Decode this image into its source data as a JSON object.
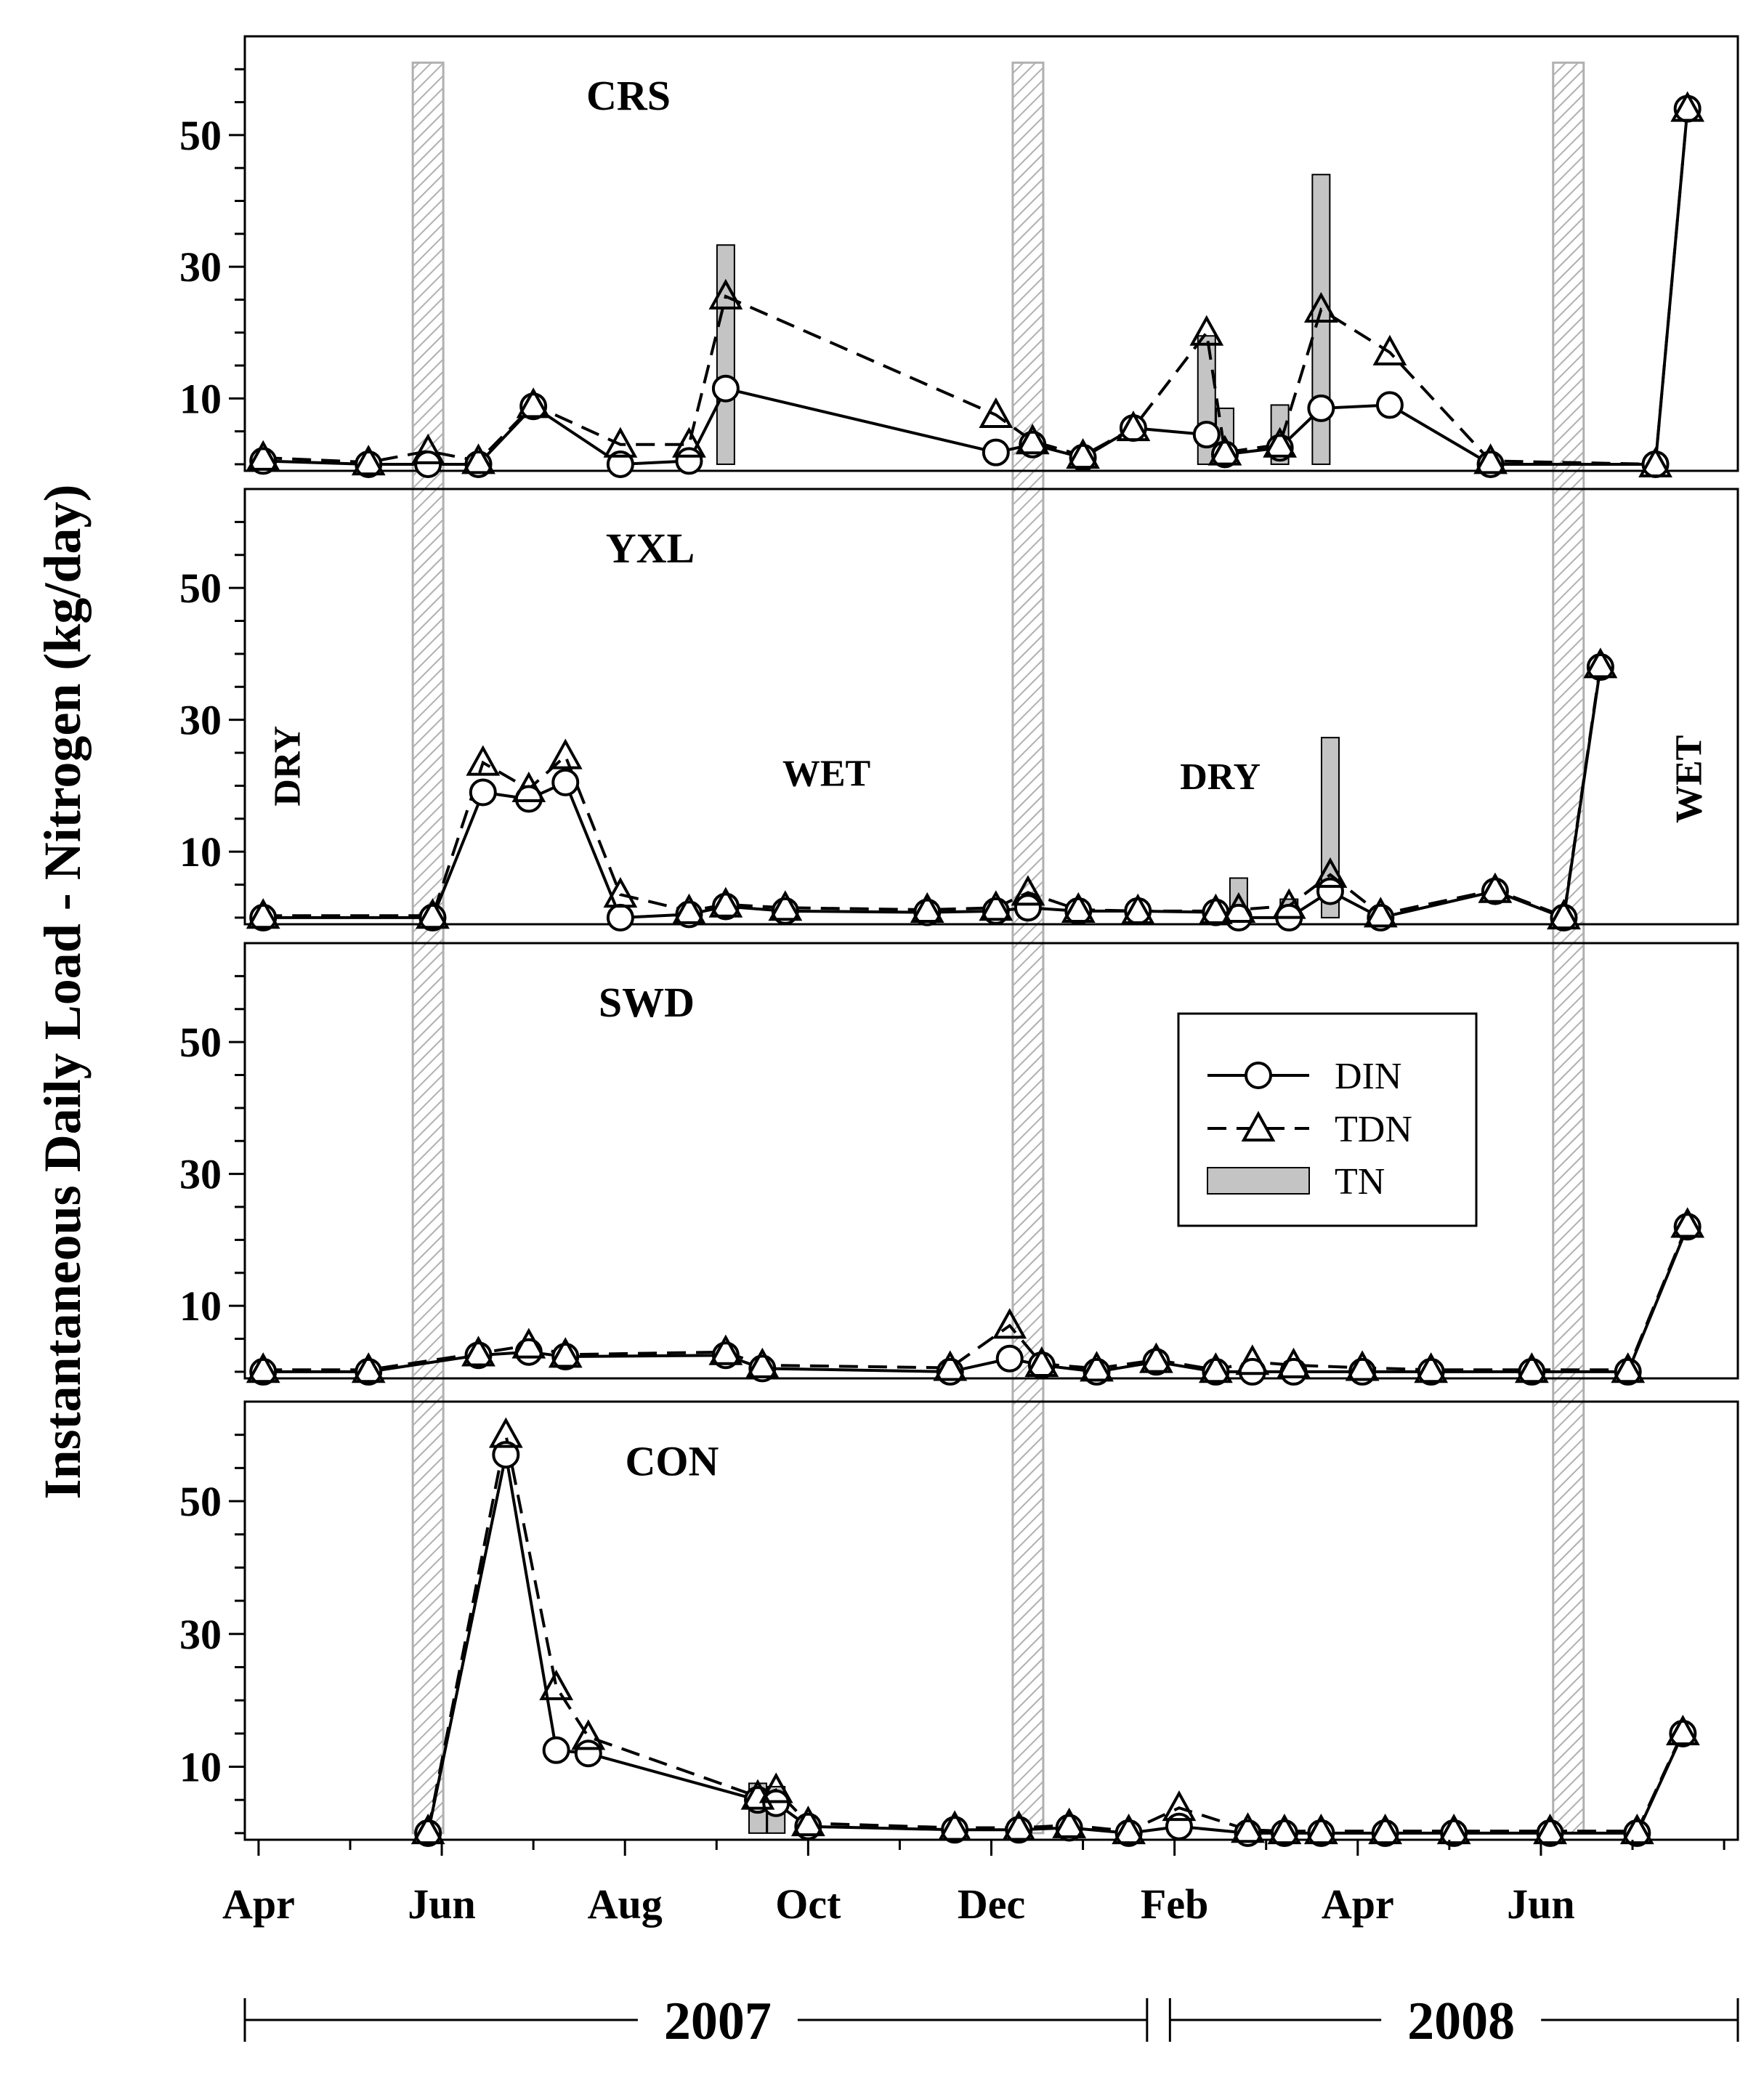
{
  "chart_data": {
    "type": "line",
    "ylabel": "Instantaneous Daily Load - Nitrogen (kg/day)",
    "x_axis": {
      "unit": "months since 2007-04-01",
      "range": [
        -0.15,
        16.15
      ],
      "ticks": [
        {
          "label": "Apr",
          "x": 0
        },
        {
          "label": "Jun",
          "x": 2
        },
        {
          "label": "Aug",
          "x": 4
        },
        {
          "label": "Oct",
          "x": 6
        },
        {
          "label": "Dec",
          "x": 8
        },
        {
          "label": "Feb",
          "x": 10
        },
        {
          "label": "Apr",
          "x": 12
        },
        {
          "label": "Jun",
          "x": 14
        }
      ]
    },
    "years": [
      {
        "label": "2007",
        "start": -0.15,
        "end": 9.7
      },
      {
        "label": "2008",
        "start": 9.95,
        "end": 16.15
      }
    ],
    "y_axis": {
      "range": [
        -1,
        65
      ],
      "ticks": [
        10,
        30,
        50
      ],
      "minor_step": 5
    },
    "transitions": [
      1.85,
      8.4,
      14.3
    ],
    "legend": [
      {
        "name": "DIN",
        "marker": "circle",
        "line": "solid"
      },
      {
        "name": "TDN",
        "marker": "triangle",
        "line": "dashed"
      },
      {
        "name": "TN",
        "marker": "bar",
        "line": "none"
      }
    ],
    "colors": {
      "line": "#000000",
      "bar_fill": "#c4c4c4",
      "hatch": "#b0b0b0"
    },
    "panels": [
      {
        "title": "CRS",
        "DIN": [
          [
            0.05,
            0.5
          ],
          [
            1.2,
            0
          ],
          [
            1.85,
            0
          ],
          [
            2.4,
            0
          ],
          [
            3,
            8.8
          ],
          [
            3.95,
            0
          ],
          [
            4.7,
            0.5
          ],
          [
            5.1,
            11.5
          ],
          [
            8.05,
            1.8
          ],
          [
            8.45,
            3
          ],
          [
            9,
            1
          ],
          [
            9.55,
            5.5
          ],
          [
            10.35,
            4.5
          ],
          [
            10.55,
            1.5
          ],
          [
            11.15,
            2.5
          ],
          [
            11.6,
            8.5
          ],
          [
            12.35,
            9
          ],
          [
            13.45,
            0
          ],
          [
            15.25,
            0
          ],
          [
            15.6,
            54
          ]
        ],
        "TDN": [
          [
            0.05,
            1
          ],
          [
            1.2,
            0.3
          ],
          [
            1.85,
            2
          ],
          [
            2.4,
            0.5
          ],
          [
            3,
            9
          ],
          [
            3.95,
            3
          ],
          [
            4.7,
            3
          ],
          [
            5.1,
            25.5
          ],
          [
            8.05,
            7.5
          ],
          [
            8.45,
            3.5
          ],
          [
            9,
            1.3
          ],
          [
            9.55,
            5.5
          ],
          [
            10.35,
            20
          ],
          [
            10.55,
            1.8
          ],
          [
            11.15,
            3
          ],
          [
            11.6,
            23.5
          ],
          [
            12.35,
            17
          ],
          [
            13.45,
            0.5
          ],
          [
            15.25,
            0
          ],
          [
            15.6,
            54
          ]
        ],
        "TN": [
          [
            5.1,
            33.3
          ],
          [
            10.35,
            19.5
          ],
          [
            10.55,
            8.5
          ],
          [
            11.15,
            9
          ],
          [
            11.6,
            44
          ]
        ]
      },
      {
        "title": "YXL",
        "season_labels": [
          {
            "text": "DRY",
            "x": 0.45,
            "y": 23,
            "rotate": true
          },
          {
            "text": "WET",
            "x": 6.2,
            "y": 20,
            "rotate": false
          },
          {
            "text": "DRY",
            "x": 10.5,
            "y": 19.5,
            "rotate": false
          },
          {
            "text": "WET",
            "x": 15.75,
            "y": 21,
            "rotate": true
          }
        ],
        "DIN": [
          [
            0.05,
            0
          ],
          [
            1.9,
            0
          ],
          [
            2.45,
            19
          ],
          [
            2.95,
            18
          ],
          [
            3.35,
            20.5
          ],
          [
            3.95,
            0
          ],
          [
            4.7,
            0.5
          ],
          [
            5.1,
            1.7
          ],
          [
            5.75,
            1
          ],
          [
            7.3,
            0.8
          ],
          [
            8.05,
            1
          ],
          [
            8.4,
            1.5
          ],
          [
            8.95,
            1
          ],
          [
            9.6,
            1
          ],
          [
            10.45,
            0.8
          ],
          [
            10.7,
            0
          ],
          [
            11.25,
            0
          ],
          [
            11.7,
            4
          ],
          [
            12.25,
            0
          ],
          [
            13.5,
            4
          ],
          [
            14.25,
            0
          ],
          [
            14.65,
            38
          ]
        ],
        "TDN": [
          [
            0.05,
            0.3
          ],
          [
            1.9,
            0.3
          ],
          [
            2.45,
            23.5
          ],
          [
            2.95,
            19.5
          ],
          [
            3.35,
            24.5
          ],
          [
            3.95,
            3.5
          ],
          [
            4.7,
            1
          ],
          [
            5.1,
            2
          ],
          [
            5.75,
            1.5
          ],
          [
            7.3,
            1.2
          ],
          [
            8.05,
            1.5
          ],
          [
            8.4,
            3.8
          ],
          [
            8.95,
            1.2
          ],
          [
            9.6,
            1
          ],
          [
            10.45,
            1
          ],
          [
            10.7,
            1.2
          ],
          [
            11.25,
            1.8
          ],
          [
            11.7,
            6.5
          ],
          [
            12.25,
            0.5
          ],
          [
            13.5,
            4.2
          ],
          [
            14.25,
            0.2
          ],
          [
            14.65,
            38.3
          ]
        ],
        "TN": [
          [
            10.7,
            6
          ],
          [
            11.25,
            2.8
          ],
          [
            11.7,
            27.3
          ]
        ]
      },
      {
        "title": "SWD",
        "DIN": [
          [
            0.05,
            0
          ],
          [
            1.2,
            0
          ],
          [
            2.4,
            2.5
          ],
          [
            2.95,
            3
          ],
          [
            3.35,
            2.3
          ],
          [
            5.1,
            2.5
          ],
          [
            5.5,
            0.5
          ],
          [
            7.55,
            0
          ],
          [
            8.2,
            2
          ],
          [
            8.55,
            1
          ],
          [
            9.15,
            0
          ],
          [
            9.8,
            1.5
          ],
          [
            10.45,
            0
          ],
          [
            10.85,
            0
          ],
          [
            11.3,
            0
          ],
          [
            12.05,
            0
          ],
          [
            12.8,
            0
          ],
          [
            13.9,
            0
          ],
          [
            14.95,
            0
          ],
          [
            15.6,
            22
          ]
        ],
        "TDN": [
          [
            0.05,
            0.3
          ],
          [
            1.2,
            0.3
          ],
          [
            2.4,
            2.8
          ],
          [
            2.95,
            4
          ],
          [
            3.35,
            2.6
          ],
          [
            5.1,
            3
          ],
          [
            5.5,
            1
          ],
          [
            7.55,
            0.6
          ],
          [
            8.2,
            7
          ],
          [
            8.55,
            1.2
          ],
          [
            9.15,
            0.5
          ],
          [
            9.8,
            1.8
          ],
          [
            10.45,
            0.3
          ],
          [
            10.85,
            1.5
          ],
          [
            11.3,
            1
          ],
          [
            12.05,
            0.6
          ],
          [
            12.8,
            0.3
          ],
          [
            13.9,
            0.3
          ],
          [
            14.95,
            0.3
          ],
          [
            15.6,
            22.3
          ]
        ],
        "TN": [
          [
            10.85,
            1.3
          ],
          [
            11.3,
            1.5
          ]
        ]
      },
      {
        "title": "CON",
        "DIN": [
          [
            1.85,
            0
          ],
          [
            2.7,
            57
          ],
          [
            3.25,
            12.5
          ],
          [
            3.6,
            12
          ],
          [
            5.45,
            5
          ],
          [
            5.65,
            4.5
          ],
          [
            6,
            1
          ],
          [
            7.6,
            0.5
          ],
          [
            8.3,
            0.5
          ],
          [
            8.85,
            0.8
          ],
          [
            9.5,
            0
          ],
          [
            10.05,
            1
          ],
          [
            10.8,
            0
          ],
          [
            11.2,
            0
          ],
          [
            11.6,
            0
          ],
          [
            12.3,
            0
          ],
          [
            13.05,
            0
          ],
          [
            14.1,
            0
          ],
          [
            15.05,
            0
          ],
          [
            15.55,
            15
          ]
        ],
        "TDN": [
          [
            1.85,
            0.3
          ],
          [
            2.7,
            60
          ],
          [
            3.25,
            22
          ],
          [
            3.6,
            14.5
          ],
          [
            5.45,
            5.5
          ],
          [
            5.65,
            6.5
          ],
          [
            6,
            1.5
          ],
          [
            7.6,
            0.8
          ],
          [
            8.3,
            0.8
          ],
          [
            8.85,
            1.2
          ],
          [
            9.5,
            0.3
          ],
          [
            10.05,
            3.8
          ],
          [
            10.8,
            0.5
          ],
          [
            11.2,
            0.3
          ],
          [
            11.6,
            0.3
          ],
          [
            12.3,
            0.3
          ],
          [
            13.05,
            0.3
          ],
          [
            14.1,
            0.3
          ],
          [
            15.05,
            0.3
          ],
          [
            15.55,
            15.2
          ]
        ],
        "TN": [
          [
            5.45,
            7.5
          ],
          [
            5.65,
            7
          ]
        ]
      }
    ]
  }
}
